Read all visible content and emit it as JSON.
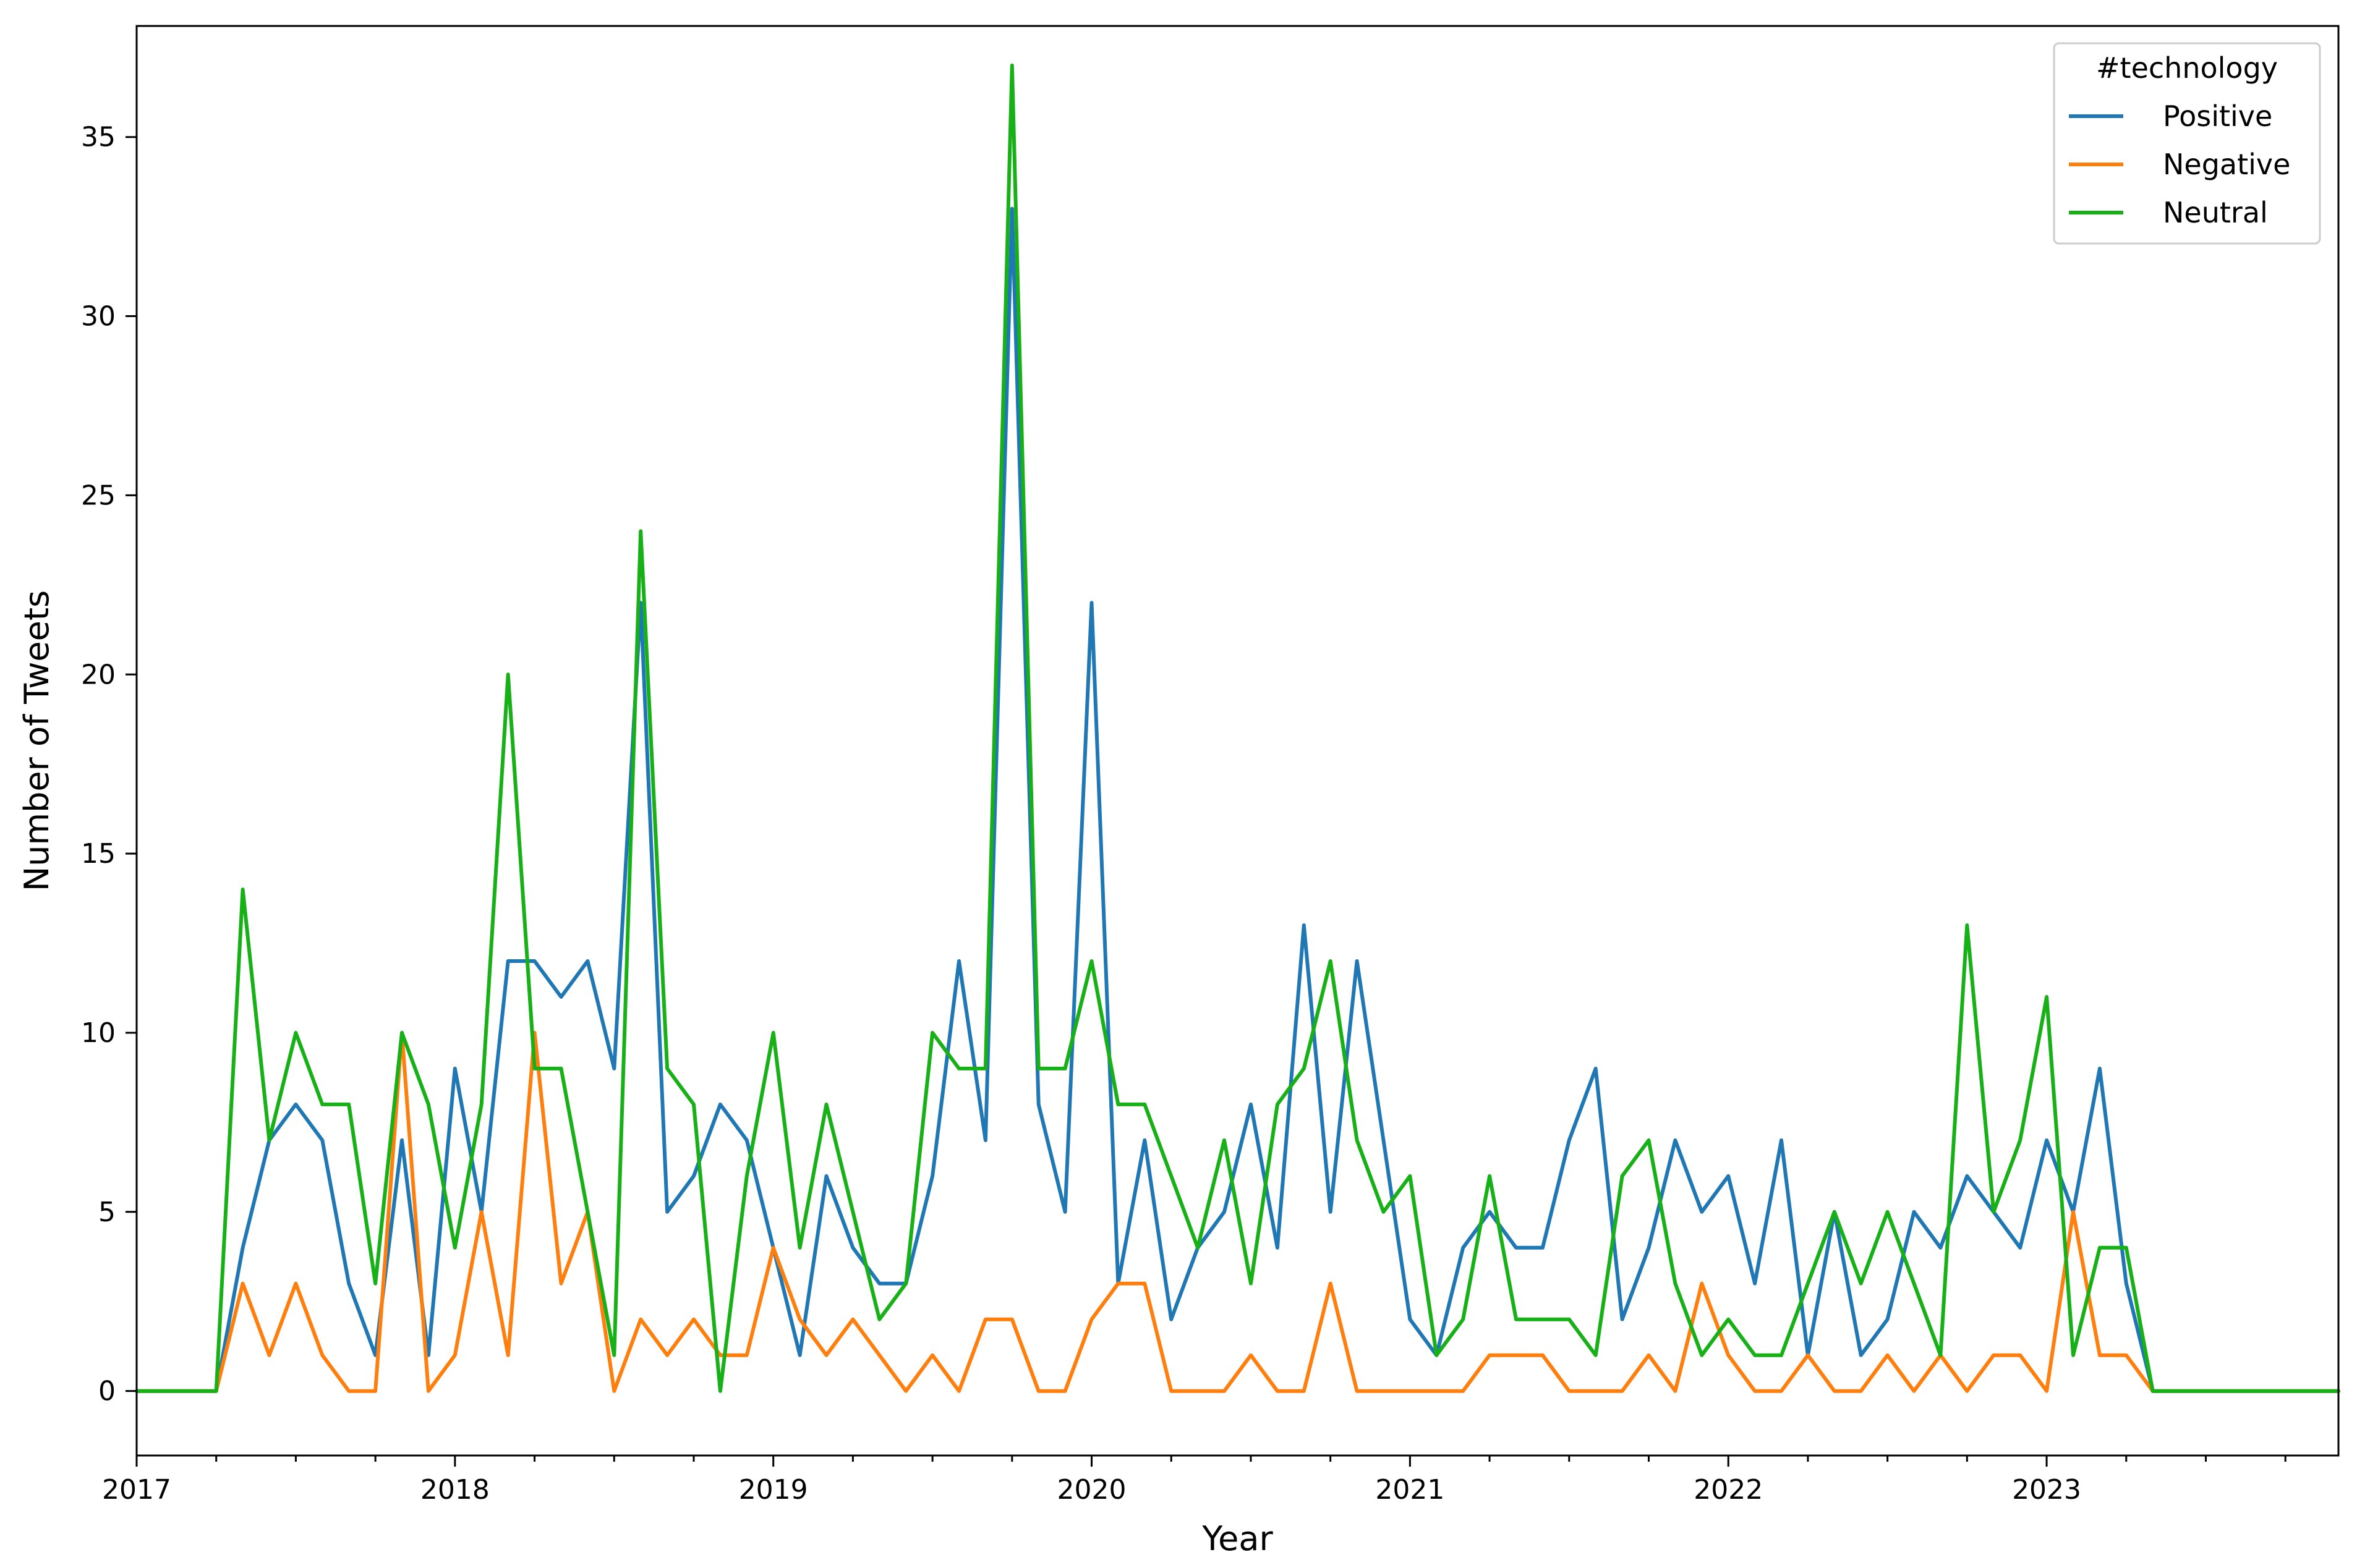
{
  "chart_data": {
    "type": "line",
    "title": "",
    "xlabel": "Year",
    "ylabel": "Number of Tweets",
    "x_start": "2017-01",
    "x_end": "2023-12",
    "x_frequency": "monthly",
    "xlim": [
      "2017-01",
      "2023-12"
    ],
    "ylim": [
      -1.8,
      38.1
    ],
    "x_ticks": [
      {
        "label": "2017",
        "value": "2017-01"
      },
      {
        "label": "2018",
        "value": "2018-01"
      },
      {
        "label": "2019",
        "value": "2019-01"
      },
      {
        "label": "2020",
        "value": "2020-01"
      },
      {
        "label": "2021",
        "value": "2021-01"
      },
      {
        "label": "2022",
        "value": "2022-01"
      },
      {
        "label": "2023",
        "value": "2023-01"
      }
    ],
    "y_ticks": [
      0,
      5,
      10,
      15,
      20,
      25,
      30,
      35
    ],
    "grid": false,
    "legend": {
      "title": "#technology",
      "placement": "top-right"
    },
    "series": [
      {
        "name": "Positive",
        "color": "#1f77b4",
        "values": [
          0,
          0,
          0,
          0,
          4,
          7,
          8,
          7,
          3,
          1,
          7,
          1,
          9,
          5,
          12,
          12,
          11,
          12,
          9,
          22,
          5,
          6,
          8,
          7,
          4,
          1,
          6,
          4,
          3,
          3,
          6,
          12,
          7,
          33,
          8,
          5,
          22,
          3,
          7,
          2,
          4,
          5,
          8,
          4,
          13,
          5,
          12,
          7,
          2,
          1,
          4,
          5,
          4,
          4,
          7,
          9,
          2,
          4,
          7,
          5,
          6,
          3,
          7,
          1,
          5,
          1,
          2,
          5,
          4,
          6,
          5,
          4,
          7,
          5,
          9,
          3,
          0,
          0,
          0,
          0,
          0,
          0,
          0,
          0
        ]
      },
      {
        "name": "Negative",
        "color": "#ff7f0e",
        "values": [
          0,
          0,
          0,
          0,
          3,
          1,
          3,
          1,
          0,
          0,
          10,
          0,
          1,
          5,
          1,
          10,
          3,
          5,
          0,
          2,
          1,
          2,
          1,
          1,
          4,
          2,
          1,
          2,
          1,
          0,
          1,
          0,
          2,
          2,
          0,
          0,
          2,
          3,
          3,
          0,
          0,
          0,
          1,
          0,
          0,
          3,
          0,
          0,
          0,
          0,
          0,
          1,
          1,
          1,
          0,
          0,
          0,
          1,
          0,
          3,
          1,
          0,
          0,
          1,
          0,
          0,
          1,
          0,
          1,
          0,
          1,
          1,
          0,
          5,
          1,
          1,
          0,
          0,
          0,
          0,
          0,
          0,
          0,
          0
        ]
      },
      {
        "name": "Neutral",
        "color": "#17b117",
        "values": [
          0,
          0,
          0,
          0,
          14,
          7,
          10,
          8,
          8,
          3,
          10,
          8,
          4,
          8,
          20,
          9,
          9,
          5,
          1,
          24,
          9,
          8,
          0,
          6,
          10,
          4,
          8,
          5,
          2,
          3,
          10,
          9,
          9,
          37,
          9,
          9,
          12,
          8,
          8,
          6,
          4,
          7,
          3,
          8,
          9,
          12,
          7,
          5,
          6,
          1,
          2,
          6,
          2,
          2,
          2,
          1,
          6,
          7,
          3,
          1,
          2,
          1,
          1,
          3,
          5,
          3,
          5,
          3,
          1,
          13,
          5,
          7,
          11,
          1,
          4,
          4,
          0,
          0,
          0,
          0,
          0,
          0,
          0,
          0
        ]
      }
    ]
  }
}
